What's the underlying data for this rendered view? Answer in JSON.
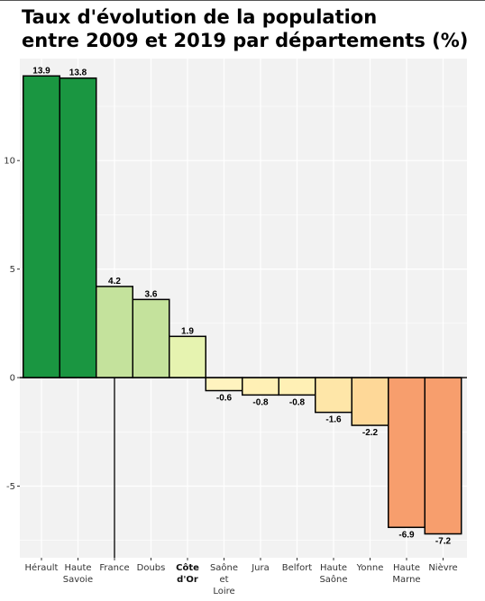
{
  "chart_data": {
    "type": "bar",
    "title_lines": [
      "Taux d'évolution de la population",
      "entre 2009 et 2019 par départements (%)"
    ],
    "categories": [
      {
        "label": [
          "Hérault"
        ],
        "bold": false
      },
      {
        "label": [
          "Haute",
          "Savoie"
        ],
        "bold": false
      },
      {
        "label": [
          "France"
        ],
        "bold": false
      },
      {
        "label": [
          "Doubs"
        ],
        "bold": false
      },
      {
        "label": [
          "Côte",
          "d'Or"
        ],
        "bold": true
      },
      {
        "label": [
          "Saône",
          "et",
          "Loire"
        ],
        "bold": false
      },
      {
        "label": [
          "Jura"
        ],
        "bold": false
      },
      {
        "label": [
          "Belfort"
        ],
        "bold": false
      },
      {
        "label": [
          "Haute",
          "Saône"
        ],
        "bold": false
      },
      {
        "label": [
          "Yonne"
        ],
        "bold": false
      },
      {
        "label": [
          "Haute",
          "Marne"
        ],
        "bold": false
      },
      {
        "label": [
          "Nièvre"
        ],
        "bold": false
      }
    ],
    "values": [
      13.9,
      13.8,
      4.2,
      3.6,
      1.9,
      -0.6,
      -0.8,
      -0.8,
      -1.6,
      -2.2,
      -6.9,
      -7.2
    ],
    "value_labels": [
      "13.9",
      "13.8",
      "4.2",
      "3.6",
      "1.9",
      "-0.6",
      "-0.8",
      "-0.8",
      "-1.6",
      "-2.2",
      "-6.9",
      "-7.2"
    ],
    "colors": [
      "#1a9641",
      "#1a9641",
      "#c4e29c",
      "#c4e29c",
      "#e6f3b0",
      "#fff3bf",
      "#fff0b5",
      "#fff0b5",
      "#fee6a8",
      "#fed898",
      "#f79e6d",
      "#f79e6d"
    ],
    "yticks": [
      -5,
      0,
      5,
      10
    ],
    "ytick_labels": [
      "-5",
      "0",
      "5",
      "10"
    ],
    "ylim": [
      -8.3,
      14.7
    ],
    "grid": true,
    "france_line": {
      "category_index": 2,
      "to_value": -8.3
    },
    "xlabel": "",
    "ylabel": ""
  }
}
